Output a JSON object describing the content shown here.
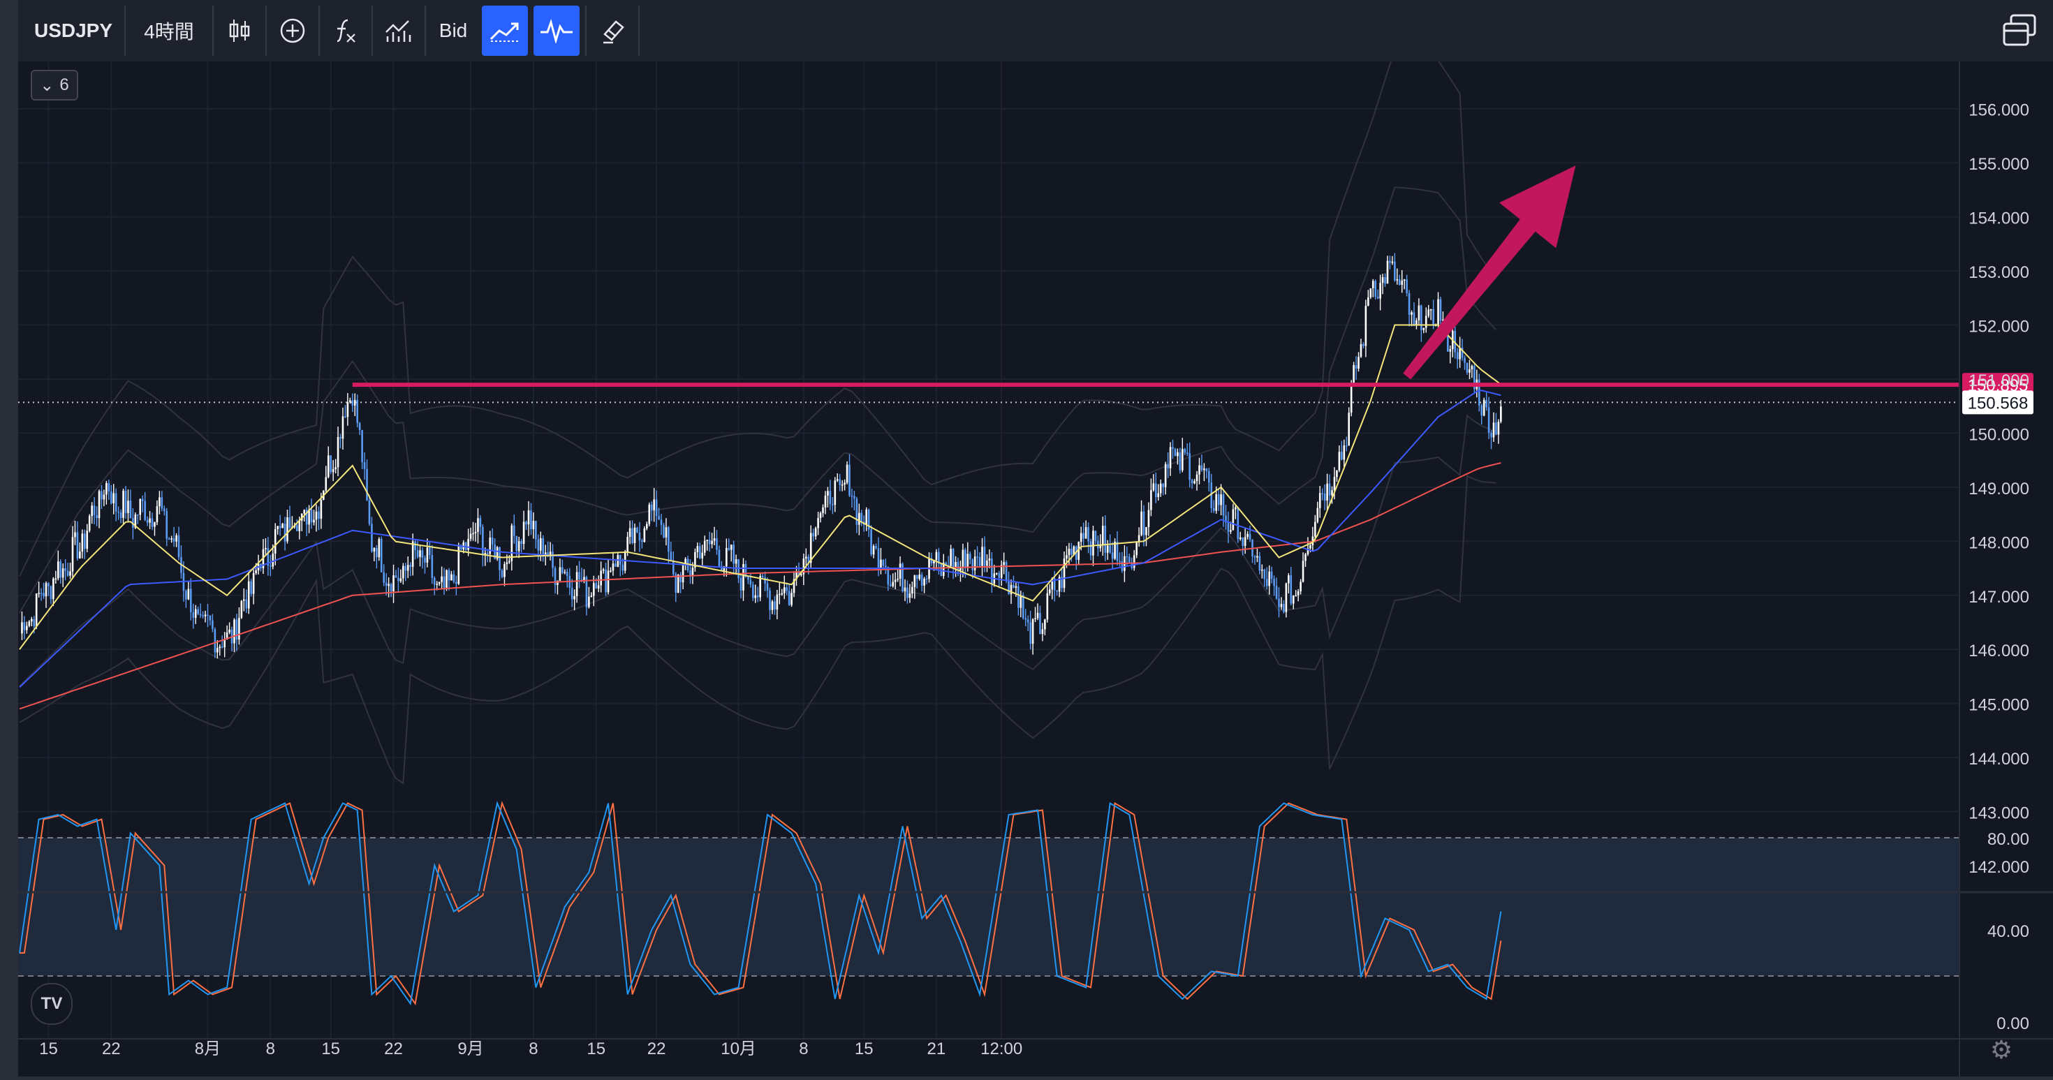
{
  "toolbar": {
    "symbol": "USDJPY",
    "interval": "4時間",
    "bars_icon": "candlestick-icon",
    "compare_icon": "plus-circle-icon",
    "indicators_icon": "fx-icon",
    "chart_type_icon": "bar-chart-icon",
    "price_source": "Bid",
    "trend_icon": "trend-line-icon",
    "oscillator_icon": "pulse-icon",
    "brush_icon": "eraser-icon",
    "layout_icon": "windows-icon"
  },
  "panel": {
    "collapse_count": "6",
    "logo_text": "TV",
    "gear_icon": "gear-icon"
  },
  "colors": {
    "background": "#131722",
    "candle_up": "#ffffff",
    "candle_down": "#5b9cf6",
    "ma_short": "#f4e67b",
    "ma_mid": "#3d5afe",
    "ma_long": "#ef5350",
    "resistance": "#d81b60",
    "arrow": "#c2185b",
    "stoch_k": "#2196f3",
    "stoch_d": "#ff7043"
  },
  "chart_data": {
    "type": "candlestick",
    "symbol": "USDJPY",
    "interval": "4時間",
    "x_ticks": [
      "15",
      "22",
      "8月",
      "8",
      "15",
      "22",
      "9月",
      "8",
      "15",
      "22",
      "10月",
      "8",
      "15",
      "21",
      "12:00"
    ],
    "y_ticks": [
      "156.000",
      "155.000",
      "154.000",
      "153.000",
      "152.000",
      "151.000",
      "150.000",
      "149.000",
      "148.000",
      "147.000",
      "146.000",
      "145.000",
      "144.000",
      "143.000",
      "142.000"
    ],
    "ylim": [
      141.2,
      156.5
    ],
    "close_path_points": [
      [
        0,
        146.3
      ],
      [
        12,
        147.2
      ],
      [
        25,
        147.9
      ],
      [
        35,
        149.0
      ],
      [
        45,
        148.5
      ],
      [
        58,
        148.6
      ],
      [
        66,
        147.7
      ],
      [
        72,
        146.6
      ],
      [
        86,
        146.1
      ],
      [
        100,
        147.6
      ],
      [
        112,
        148.4
      ],
      [
        122,
        148.5
      ],
      [
        130,
        149.6
      ],
      [
        138,
        150.9
      ],
      [
        146,
        148.0
      ],
      [
        155,
        147.2
      ],
      [
        165,
        147.8
      ],
      [
        176,
        147.0
      ],
      [
        188,
        148.2
      ],
      [
        200,
        147.6
      ],
      [
        210,
        148.4
      ],
      [
        220,
        147.6
      ],
      [
        235,
        147.1
      ],
      [
        252,
        147.8
      ],
      [
        264,
        148.7
      ],
      [
        272,
        147.2
      ],
      [
        285,
        148.0
      ],
      [
        297,
        147.5
      ],
      [
        310,
        147.0
      ],
      [
        320,
        147.1
      ],
      [
        332,
        148.6
      ],
      [
        343,
        149.1
      ],
      [
        353,
        148.0
      ],
      [
        364,
        147.2
      ],
      [
        376,
        147.5
      ],
      [
        387,
        147.6
      ],
      [
        398,
        147.7
      ],
      [
        410,
        147.4
      ],
      [
        420,
        146.2
      ],
      [
        430,
        147.2
      ],
      [
        440,
        148.2
      ],
      [
        450,
        147.9
      ],
      [
        460,
        147.6
      ],
      [
        466,
        148.5
      ],
      [
        477,
        149.6
      ],
      [
        488,
        149.3
      ],
      [
        498,
        148.6
      ],
      [
        507,
        148.1
      ],
      [
        513,
        147.6
      ],
      [
        522,
        146.8
      ],
      [
        530,
        147.2
      ],
      [
        537,
        148.6
      ],
      [
        548,
        149.6
      ],
      [
        560,
        152.7
      ],
      [
        570,
        153.0
      ],
      [
        578,
        152.0
      ],
      [
        588,
        152.2
      ],
      [
        597,
        151.4
      ],
      [
        605,
        150.8
      ],
      [
        610,
        150.0
      ],
      [
        614,
        150.57
      ]
    ],
    "ma_short_points": [
      [
        0,
        146.0
      ],
      [
        25,
        147.5
      ],
      [
        45,
        148.4
      ],
      [
        66,
        147.6
      ],
      [
        86,
        147.0
      ],
      [
        112,
        148.2
      ],
      [
        138,
        149.4
      ],
      [
        155,
        148.0
      ],
      [
        200,
        147.7
      ],
      [
        252,
        147.8
      ],
      [
        297,
        147.4
      ],
      [
        320,
        147.2
      ],
      [
        343,
        148.5
      ],
      [
        376,
        147.7
      ],
      [
        420,
        146.9
      ],
      [
        440,
        147.9
      ],
      [
        466,
        148.0
      ],
      [
        498,
        149.0
      ],
      [
        522,
        147.7
      ],
      [
        537,
        148.0
      ],
      [
        560,
        150.6
      ],
      [
        570,
        152.0
      ],
      [
        588,
        152.0
      ],
      [
        605,
        151.2
      ],
      [
        614,
        150.9
      ]
    ],
    "ma_mid_points": [
      [
        0,
        145.3
      ],
      [
        45,
        147.2
      ],
      [
        86,
        147.3
      ],
      [
        138,
        148.2
      ],
      [
        200,
        147.8
      ],
      [
        297,
        147.5
      ],
      [
        376,
        147.5
      ],
      [
        420,
        147.2
      ],
      [
        466,
        147.6
      ],
      [
        498,
        148.4
      ],
      [
        537,
        147.8
      ],
      [
        560,
        148.9
      ],
      [
        588,
        150.3
      ],
      [
        605,
        150.8
      ],
      [
        614,
        150.7
      ]
    ],
    "ma_long_points": [
      [
        0,
        144.9
      ],
      [
        86,
        146.2
      ],
      [
        138,
        147.0
      ],
      [
        200,
        147.2
      ],
      [
        297,
        147.4
      ],
      [
        376,
        147.5
      ],
      [
        466,
        147.6
      ],
      [
        498,
        147.8
      ],
      [
        537,
        148.0
      ],
      [
        560,
        148.4
      ],
      [
        588,
        149.0
      ],
      [
        605,
        149.35
      ],
      [
        614,
        149.45
      ]
    ],
    "resistance_level": 150.895,
    "current_price": 150.568,
    "price_labels": [
      "150.895",
      "150.568"
    ],
    "stochastic": {
      "y_ticks": [
        "80.00",
        "40.00",
        "0.00"
      ],
      "ylim": [
        0,
        100
      ],
      "bands": [
        20,
        80
      ],
      "k_points": [
        [
          0,
          30
        ],
        [
          8,
          88
        ],
        [
          16,
          90
        ],
        [
          24,
          85
        ],
        [
          32,
          88
        ],
        [
          40,
          40
        ],
        [
          46,
          82
        ],
        [
          58,
          68
        ],
        [
          62,
          12
        ],
        [
          70,
          18
        ],
        [
          78,
          12
        ],
        [
          86,
          15
        ],
        [
          96,
          88
        ],
        [
          110,
          95
        ],
        [
          120,
          60
        ],
        [
          126,
          80
        ],
        [
          134,
          95
        ],
        [
          140,
          92
        ],
        [
          146,
          12
        ],
        [
          154,
          20
        ],
        [
          162,
          8
        ],
        [
          172,
          68
        ],
        [
          180,
          48
        ],
        [
          190,
          55
        ],
        [
          198,
          95
        ],
        [
          206,
          75
        ],
        [
          214,
          15
        ],
        [
          226,
          50
        ],
        [
          236,
          65
        ],
        [
          244,
          95
        ],
        [
          252,
          12
        ],
        [
          262,
          40
        ],
        [
          270,
          55
        ],
        [
          278,
          25
        ],
        [
          288,
          12
        ],
        [
          298,
          15
        ],
        [
          310,
          90
        ],
        [
          320,
          82
        ],
        [
          330,
          60
        ],
        [
          338,
          10
        ],
        [
          348,
          55
        ],
        [
          356,
          30
        ],
        [
          366,
          85
        ],
        [
          374,
          45
        ],
        [
          382,
          55
        ],
        [
          390,
          35
        ],
        [
          398,
          12
        ],
        [
          410,
          90
        ],
        [
          422,
          92
        ],
        [
          430,
          20
        ],
        [
          442,
          15
        ],
        [
          452,
          95
        ],
        [
          460,
          90
        ],
        [
          472,
          20
        ],
        [
          482,
          10
        ],
        [
          494,
          22
        ],
        [
          505,
          20
        ],
        [
          514,
          85
        ],
        [
          524,
          95
        ],
        [
          536,
          90
        ],
        [
          548,
          88
        ],
        [
          556,
          20
        ],
        [
          566,
          45
        ],
        [
          576,
          40
        ],
        [
          584,
          22
        ],
        [
          592,
          25
        ],
        [
          600,
          15
        ],
        [
          608,
          10
        ],
        [
          614,
          48
        ]
      ]
    },
    "annotations": [
      {
        "type": "horizontal-line",
        "value": 150.895
      },
      {
        "type": "arrow",
        "direction": "up-right"
      }
    ]
  }
}
